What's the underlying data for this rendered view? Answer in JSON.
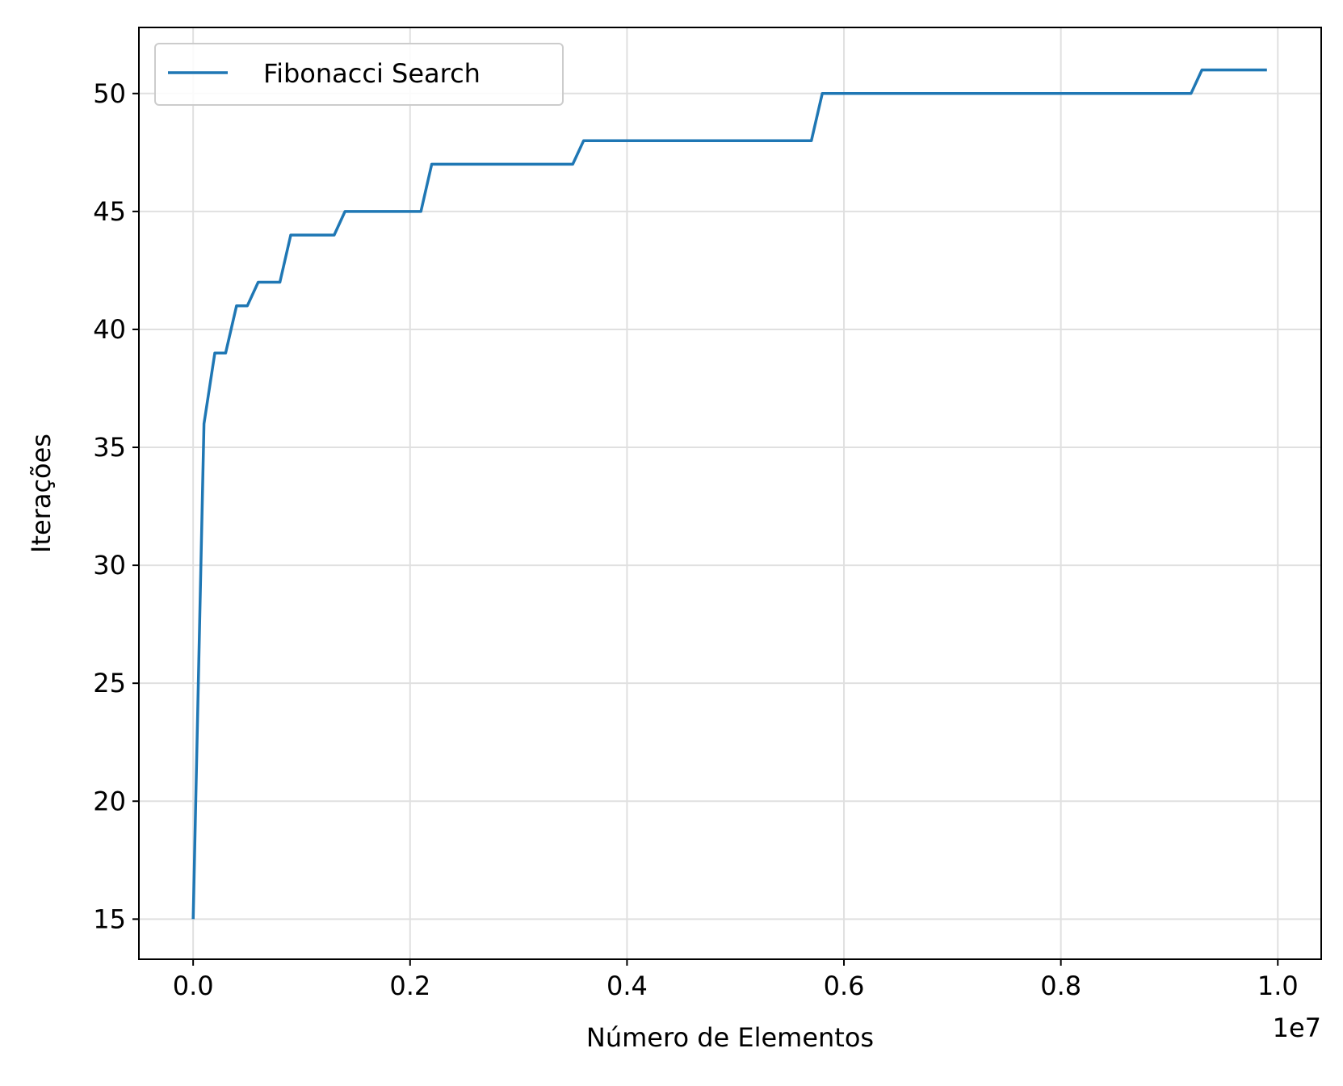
{
  "chart_data": {
    "type": "line",
    "title": "",
    "xlabel": "Número de Elementos",
    "ylabel": "Iterações",
    "x_offset_text": "1e7",
    "xlim": [
      -0.05,
      1.04
    ],
    "ylim": [
      13.3,
      52.8
    ],
    "x_ticks": [
      0.0,
      0.2,
      0.4,
      0.6,
      0.8,
      1.0
    ],
    "x_tick_labels": [
      "0.0",
      "0.2",
      "0.4",
      "0.6",
      "0.8",
      "1.0"
    ],
    "y_ticks": [
      15,
      20,
      25,
      30,
      35,
      40,
      45,
      50
    ],
    "y_tick_labels": [
      "15",
      "20",
      "25",
      "30",
      "35",
      "40",
      "45",
      "50"
    ],
    "grid": true,
    "legend_position": "top-left",
    "series": [
      {
        "name": "Fibonacci Search",
        "color": "#1f77b4",
        "x": [
          0.0,
          0.01,
          0.02,
          0.03,
          0.04,
          0.05,
          0.06,
          0.07,
          0.08,
          0.09,
          0.13,
          0.14,
          0.21,
          0.22,
          0.35,
          0.36,
          0.57,
          0.58,
          0.92,
          0.93,
          0.99
        ],
        "y": [
          15,
          36,
          39,
          39,
          41,
          41,
          42,
          42,
          42,
          44,
          44,
          45,
          45,
          47,
          47,
          48,
          48,
          50,
          50,
          51,
          51
        ]
      }
    ]
  }
}
